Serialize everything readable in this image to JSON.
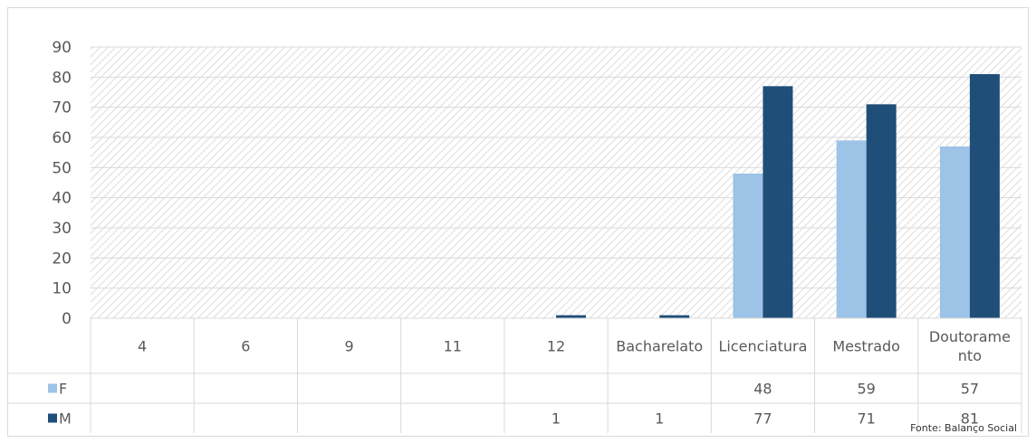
{
  "chart_data": {
    "type": "bar",
    "categories": [
      "4",
      "6",
      "9",
      "11",
      "12",
      "Bacharelato",
      "Licenciatura",
      "Mestrado",
      "Doutoramento"
    ],
    "category_labels": [
      [
        "4"
      ],
      [
        "6"
      ],
      [
        "9"
      ],
      [
        "11"
      ],
      [
        "12"
      ],
      [
        "Bacharelato"
      ],
      [
        "Licenciatura"
      ],
      [
        "Mestrado"
      ],
      [
        "Doutorame",
        "nto"
      ]
    ],
    "series": [
      {
        "name": "F",
        "color": "#9dc3e6",
        "values": [
          null,
          null,
          null,
          null,
          null,
          null,
          48,
          59,
          57
        ],
        "table_values": [
          "",
          "",
          "",
          "",
          "",
          "",
          "48",
          "59",
          "57"
        ]
      },
      {
        "name": "M",
        "color": "#1f4e79",
        "values": [
          null,
          null,
          null,
          null,
          1,
          1,
          77,
          71,
          81
        ],
        "table_values": [
          "",
          "",
          "",
          "",
          "1",
          "1",
          "77",
          "71",
          "81"
        ]
      }
    ],
    "yticks": [
      "0",
      "10",
      "20",
      "30",
      "40",
      "50",
      "60",
      "70",
      "80",
      "90"
    ],
    "ylim": [
      0,
      90
    ],
    "grid": true,
    "legend": "data-table",
    "source": "Fonte: Balanço Social"
  }
}
